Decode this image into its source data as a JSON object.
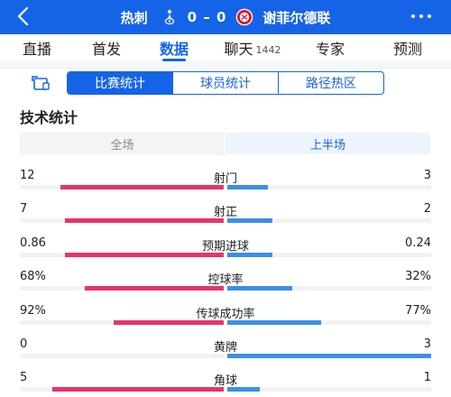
{
  "header": {
    "home_team": "热刺",
    "score": "0 – 0",
    "away_team": "谢菲尔德联",
    "icons": {
      "back": "back-arrow-icon",
      "more": "more-dots-icon",
      "home_crest": "tottenham-crest-icon",
      "away_crest": "sheffield-united-crest-icon"
    }
  },
  "tabs": [
    {
      "label": "直播"
    },
    {
      "label": "首发"
    },
    {
      "label": "数据",
      "active": true
    },
    {
      "label": "聊天",
      "count": "1442"
    },
    {
      "label": "专家"
    },
    {
      "label": "预测"
    }
  ],
  "segmented": {
    "items": [
      "比赛统计",
      "球员统计",
      "路径热区"
    ],
    "active_index": 0
  },
  "section_title": "技术统计",
  "period": {
    "options": [
      "全场",
      "上半场"
    ],
    "active_index": 1
  },
  "colors": {
    "accent": "#1564e8",
    "home_bar": "#e8336b",
    "away_bar": "#3d8fe6",
    "track": "#f2f2f2"
  },
  "stats": [
    {
      "label": "射门",
      "home": "12",
      "away": "3",
      "home_share": 0.8,
      "away_share": 0.2
    },
    {
      "label": "射正",
      "home": "7",
      "away": "2",
      "home_share": 0.78,
      "away_share": 0.22
    },
    {
      "label": "预期进球",
      "home": "0.86",
      "away": "0.24",
      "home_share": 0.78,
      "away_share": 0.22
    },
    {
      "label": "控球率",
      "home": "68%",
      "away": "32%",
      "home_share": 0.68,
      "away_share": 0.32
    },
    {
      "label": "传球成功率",
      "home": "92%",
      "away": "77%",
      "home_share": 0.54,
      "away_share": 0.46
    },
    {
      "label": "黄牌",
      "home": "0",
      "away": "3",
      "home_share": 0.0,
      "away_share": 1.0
    },
    {
      "label": "角球",
      "home": "5",
      "away": "1",
      "home_share": 0.84,
      "away_share": 0.16
    }
  ]
}
